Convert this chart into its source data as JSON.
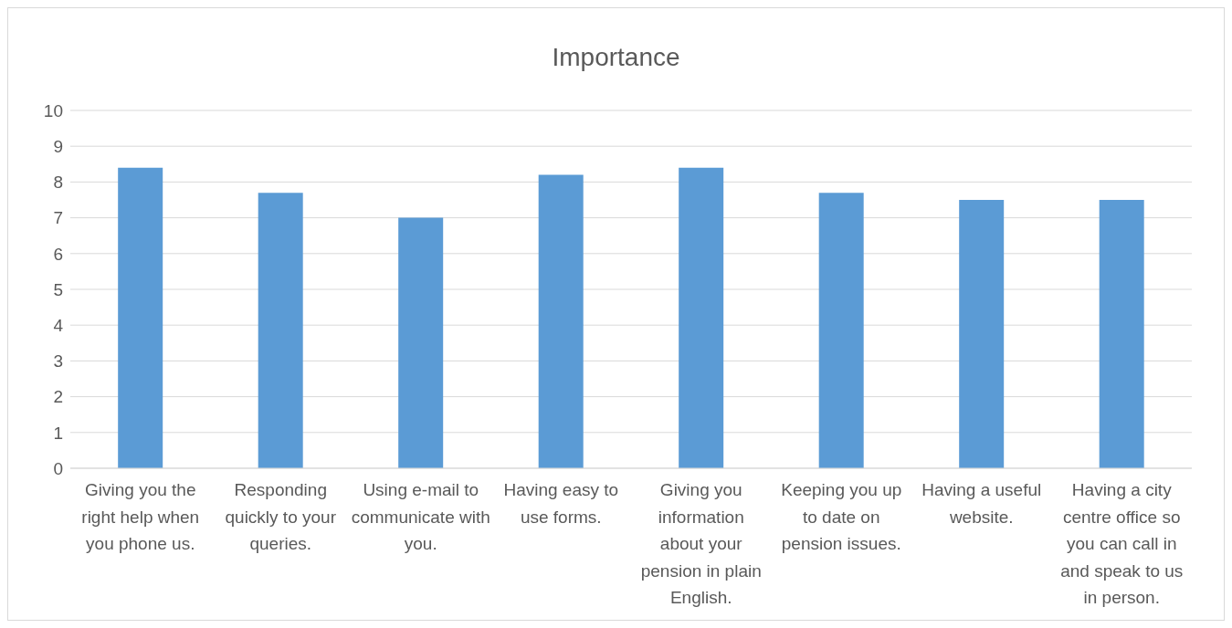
{
  "chart_data": {
    "type": "bar",
    "title": "Importance",
    "categories": [
      "Giving you the right help when you phone us.",
      "Responding quickly to your queries.",
      "Using e-mail to communicate with you.",
      "Having easy to use forms.",
      "Giving you information about your pension in plain English.",
      "Keeping you up to date on pension issues.",
      "Having a useful website.",
      "Having a city centre office so you can call in and speak to us in person."
    ],
    "values": [
      8.4,
      7.7,
      7.0,
      8.2,
      8.4,
      7.7,
      7.5,
      7.5
    ],
    "color": "#5b9bd5",
    "ylim": [
      0,
      10
    ],
    "yticks": [
      0,
      1,
      2,
      3,
      4,
      5,
      6,
      7,
      8,
      9,
      10
    ],
    "grid": "y"
  }
}
